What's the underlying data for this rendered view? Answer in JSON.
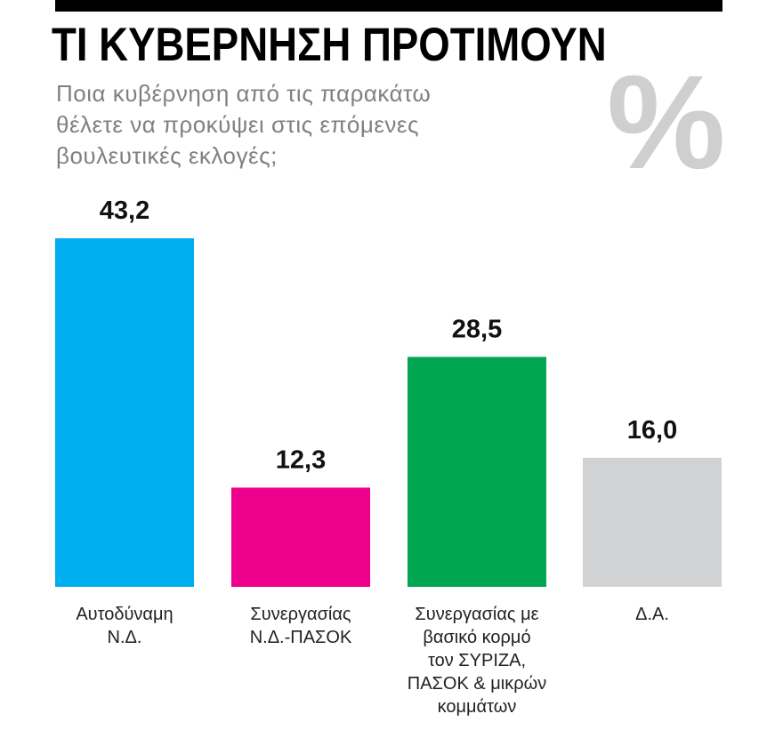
{
  "title": "ΤΙ ΚΥΒΕΡΝΗΣΗ ΠΡΟΤΙΜΟΥΝ",
  "subtitle_lines": [
    "Ποια κυβέρνηση από τις παρακάτω",
    "θέλετε να προκύψει στις επόμενες",
    "βουλευτικές εκλογές;"
  ],
  "unit_symbol": "%",
  "chart_data": {
    "type": "bar",
    "title": "ΤΙ ΚΥΒΕΡΝΗΣΗ ΠΡΟΤΙΜΟΥΝ",
    "categories": [
      [
        "Αυτοδύναμη",
        "Ν.Δ."
      ],
      [
        "Συνεργασίας",
        "Ν.Δ.-ΠΑΣΟΚ"
      ],
      [
        "Συνεργασίας με",
        "βασικό κορμό",
        "τον ΣΥΡΙΖΑ,",
        "ΠΑΣΟΚ & μικρών",
        "κομμάτων"
      ],
      [
        "Δ.Α."
      ]
    ],
    "values": [
      43.2,
      12.3,
      28.5,
      16.0
    ],
    "value_labels": [
      "43,2",
      "12,3",
      "28,5",
      "16,0"
    ],
    "colors": [
      "#00adef",
      "#ec008c",
      "#00a651",
      "#d1d2d4"
    ],
    "ylim": [
      0,
      43.2
    ],
    "grid": false,
    "xlabel": "",
    "ylabel": ""
  }
}
